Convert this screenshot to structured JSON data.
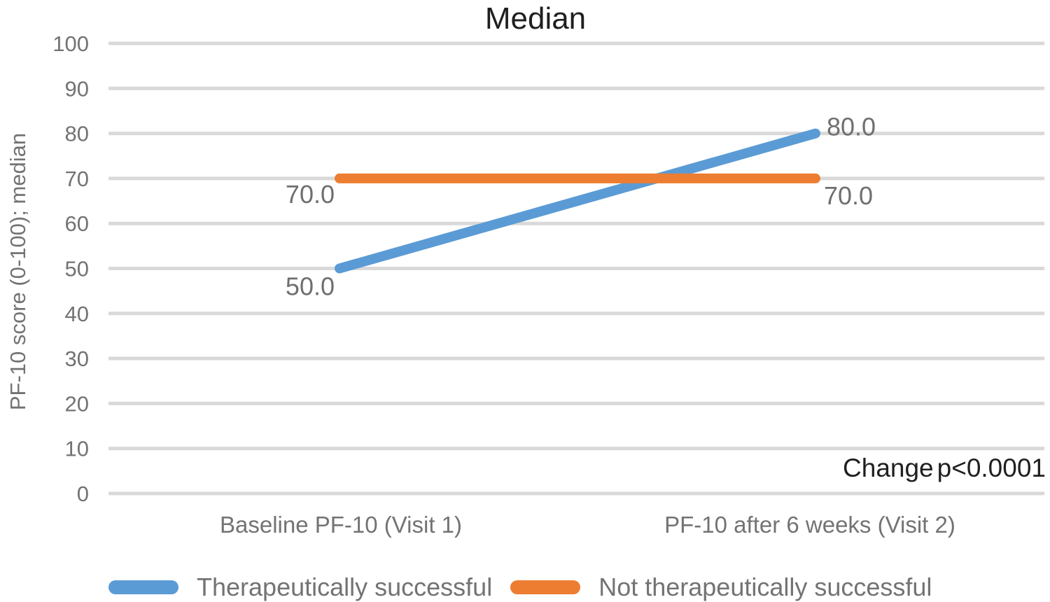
{
  "title": "Median",
  "annotation": {
    "label": "Change",
    "value": "p<0.0001"
  },
  "colors": {
    "series_blue": "#5B9BD5",
    "series_orange": "#ED7D31",
    "gridline": "#D9D9D9",
    "axis_text": "#737373",
    "data_label_text": "#6f6f6f",
    "title_text": "#1f1f1f"
  },
  "chart_data": {
    "type": "line",
    "title": "Median",
    "xlabel": "",
    "ylabel": "PF-10 score (0-100); median",
    "categories": [
      "Baseline PF-10 (Visit 1)",
      "PF-10 after 6 weeks (Visit 2)"
    ],
    "series": [
      {
        "name": "Therapeutically successful",
        "color": "#5B9BD5",
        "values": [
          50.0,
          80.0
        ],
        "data_labels": [
          "50.0",
          "80.0"
        ]
      },
      {
        "name": "Not therapeutically successful",
        "color": "#ED7D31",
        "values": [
          70.0,
          70.0
        ],
        "data_labels": [
          "70.0",
          "70.0"
        ]
      }
    ],
    "ylim": [
      0,
      100
    ],
    "y_ticks": [
      0,
      10,
      20,
      30,
      40,
      50,
      60,
      70,
      80,
      90,
      100
    ],
    "grid": true,
    "legend_position": "bottom",
    "annotation": "Change p<0.0001"
  }
}
